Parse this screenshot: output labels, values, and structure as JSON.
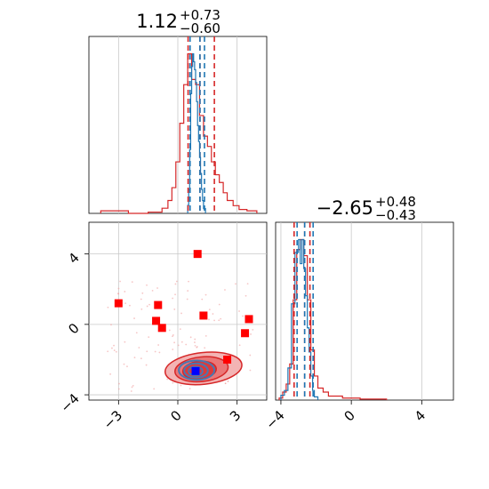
{
  "chart_data": [
    {
      "type": "histogram",
      "panel": "top-left",
      "title_main": "1.12",
      "title_sup": "+0.73",
      "title_sub": "−0.60",
      "xlim": [
        -4.5,
        4.5
      ],
      "grid": true,
      "series": [
        {
          "name": "red",
          "color": "#d62728",
          "bins": [
            [
              -3.9,
              -3.5,
              0.01
            ],
            [
              -3.5,
              -3.0,
              0.01
            ],
            [
              -3.0,
              -2.5,
              0.01
            ],
            [
              -2.5,
              -2.0,
              0.0
            ],
            [
              -2.0,
              -1.5,
              0.0
            ],
            [
              -1.5,
              -0.8,
              0.005
            ],
            [
              -0.8,
              -0.5,
              0.02
            ],
            [
              -0.5,
              -0.3,
              0.05
            ],
            [
              -0.3,
              -0.1,
              0.1
            ],
            [
              -0.1,
              0.1,
              0.2
            ],
            [
              0.1,
              0.3,
              0.35
            ],
            [
              0.3,
              0.5,
              0.5
            ],
            [
              0.5,
              0.7,
              0.62
            ],
            [
              0.7,
              0.9,
              0.52
            ],
            [
              0.9,
              1.1,
              0.5
            ],
            [
              1.1,
              1.3,
              0.38
            ],
            [
              1.3,
              1.5,
              0.3
            ],
            [
              1.5,
              1.7,
              0.26
            ],
            [
              1.7,
              1.9,
              0.2
            ],
            [
              1.9,
              2.1,
              0.15
            ],
            [
              2.1,
              2.3,
              0.12
            ],
            [
              2.3,
              2.5,
              0.08
            ],
            [
              2.5,
              2.8,
              0.05
            ],
            [
              2.8,
              3.1,
              0.03
            ],
            [
              3.1,
              3.5,
              0.015
            ],
            [
              3.5,
              4.0,
              0.01
            ]
          ]
        },
        {
          "name": "blue",
          "color": "#1f77b4",
          "bins": [
            [
              0.5,
              0.55,
              0.05
            ],
            [
              0.55,
              0.6,
              0.15
            ],
            [
              0.6,
              0.65,
              0.4
            ],
            [
              0.65,
              0.7,
              0.75
            ],
            [
              0.7,
              0.75,
              0.92
            ],
            [
              0.75,
              0.8,
              1.0
            ],
            [
              0.8,
              0.85,
              0.95
            ],
            [
              0.85,
              0.9,
              0.9
            ],
            [
              0.9,
              0.95,
              0.82
            ],
            [
              0.95,
              1.0,
              0.7
            ],
            [
              1.0,
              1.05,
              0.55
            ],
            [
              1.05,
              1.1,
              0.45
            ],
            [
              1.1,
              1.15,
              0.35
            ],
            [
              1.15,
              1.2,
              0.25
            ],
            [
              1.2,
              1.25,
              0.15
            ],
            [
              1.25,
              1.3,
              0.08
            ],
            [
              1.3,
              1.4,
              0.03
            ]
          ]
        }
      ],
      "quantile_lines": [
        {
          "x": 0.52,
          "color": "#d62728"
        },
        {
          "x": 1.12,
          "color": "#d62728"
        },
        {
          "x": 1.85,
          "color": "#d62728"
        },
        {
          "x": 0.62,
          "color": "#1f77b4"
        },
        {
          "x": 1.12,
          "color": "#1f77b4"
        },
        {
          "x": 1.35,
          "color": "#1f77b4"
        }
      ]
    },
    {
      "type": "scatter",
      "panel": "bottom-left",
      "xlim": [
        -4.5,
        4.5
      ],
      "ylim": [
        -4.3,
        5.8
      ],
      "xticks": [
        -3,
        0,
        3
      ],
      "xticklabels": [
        "−3",
        "0",
        "3"
      ],
      "yticks": [
        -4,
        0,
        4
      ],
      "yticklabels": [
        "−4",
        "0",
        "4"
      ],
      "grid": true,
      "red_markers": [
        [
          -3.0,
          1.2
        ],
        [
          -1.0,
          1.1
        ],
        [
          -1.1,
          0.2
        ],
        [
          -0.8,
          -0.2
        ],
        [
          1.0,
          4.0
        ],
        [
          1.3,
          0.5
        ],
        [
          3.6,
          0.3
        ],
        [
          3.4,
          -0.5
        ],
        [
          2.5,
          -2.0
        ]
      ],
      "blue_marker": [
        0.9,
        -2.65
      ],
      "red_contours": [
        {
          "cx": 1.3,
          "cy": -2.5,
          "rx": 1.95,
          "ry": 0.9,
          "fill": "#f3b4b4"
        },
        {
          "cx": 1.2,
          "cy": -2.55,
          "rx": 1.35,
          "ry": 0.7,
          "fill": "#ea7777"
        },
        {
          "cx": 1.1,
          "cy": -2.6,
          "rx": 0.85,
          "ry": 0.5,
          "fill": "#dc3a3a"
        }
      ],
      "blue_contours": [
        {
          "cx": 0.95,
          "cy": -2.6,
          "rx": 0.9,
          "ry": 0.55
        },
        {
          "cx": 0.92,
          "cy": -2.62,
          "rx": 0.6,
          "ry": 0.4
        },
        {
          "cx": 0.9,
          "cy": -2.65,
          "rx": 0.35,
          "ry": 0.25
        }
      ]
    },
    {
      "type": "histogram",
      "panel": "bottom-right",
      "title_main": "−2.65",
      "title_sup": "+0.48",
      "title_sub": "−0.43",
      "xlim": [
        -4.3,
        5.8
      ],
      "xticks": [
        -4,
        0,
        4
      ],
      "xticklabels": [
        "−4",
        "0",
        "4"
      ],
      "grid": true,
      "series": [
        {
          "name": "red",
          "color": "#d62728",
          "bins": [
            [
              -4.1,
              -3.9,
              0.01
            ],
            [
              -3.9,
              -3.7,
              0.04
            ],
            [
              -3.7,
              -3.5,
              0.08
            ],
            [
              -3.5,
              -3.3,
              0.18
            ],
            [
              -3.3,
              -3.1,
              0.5
            ],
            [
              -3.1,
              -2.9,
              0.75
            ],
            [
              -2.9,
              -2.7,
              0.8
            ],
            [
              -2.7,
              -2.5,
              0.72
            ],
            [
              -2.5,
              -2.3,
              0.5
            ],
            [
              -2.3,
              -2.1,
              0.25
            ],
            [
              -2.1,
              -1.9,
              0.12
            ],
            [
              -1.9,
              -1.6,
              0.06
            ],
            [
              -1.6,
              -1.3,
              0.04
            ],
            [
              -1.3,
              -1.0,
              0.02
            ],
            [
              -1.0,
              -0.5,
              0.02
            ],
            [
              -0.5,
              0.0,
              0.01
            ],
            [
              0.0,
              0.5,
              0.01
            ],
            [
              0.5,
              1.0,
              0.005
            ],
            [
              1.0,
              2.0,
              0.005
            ]
          ]
        },
        {
          "name": "blue",
          "color": "#1f77b4",
          "bins": [
            [
              -4.0,
              -3.8,
              0.03
            ],
            [
              -3.8,
              -3.6,
              0.06
            ],
            [
              -3.6,
              -3.4,
              0.2
            ],
            [
              -3.4,
              -3.2,
              0.6
            ],
            [
              -3.2,
              -3.0,
              0.92
            ],
            [
              -3.0,
              -2.9,
              1.0
            ],
            [
              -2.9,
              -2.8,
              0.85
            ],
            [
              -2.8,
              -2.7,
              1.0
            ],
            [
              -2.7,
              -2.6,
              0.82
            ],
            [
              -2.6,
              -2.5,
              0.65
            ],
            [
              -2.5,
              -2.4,
              0.45
            ],
            [
              -2.4,
              -2.3,
              0.3
            ],
            [
              -2.3,
              -2.2,
              0.15
            ],
            [
              -2.2,
              -2.1,
              0.06
            ],
            [
              -2.1,
              -1.9,
              0.02
            ]
          ]
        }
      ],
      "quantile_lines": [
        {
          "x": -3.25,
          "color": "#d62728"
        },
        {
          "x": -2.65,
          "color": "#d62728"
        },
        {
          "x": -2.35,
          "color": "#d62728"
        },
        {
          "x": -3.08,
          "color": "#1f77b4"
        },
        {
          "x": -2.65,
          "color": "#1f77b4"
        },
        {
          "x": -2.17,
          "color": "#1f77b4"
        }
      ]
    }
  ]
}
